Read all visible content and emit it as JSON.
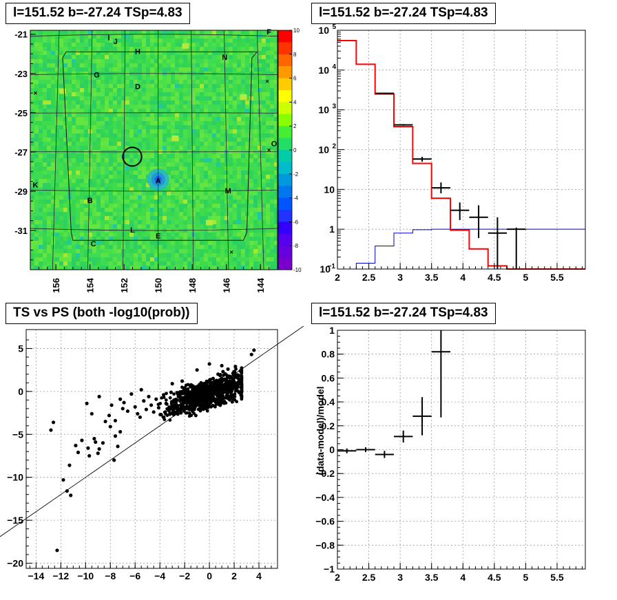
{
  "titles": {
    "skymap": "l=151.52 b=-27.24 TSp=4.83",
    "spectrum": "l=151.52 b=-27.24 TSp=4.83",
    "scatter": "TS vs PS (both -log10(prob))",
    "residual": "l=151.52 b=-27.24 TSp=4.83"
  },
  "colors": {
    "model_line": "#ff0000",
    "background_line": "#0000cc",
    "data": "#000000",
    "map_base": "#44dd44"
  },
  "chart_data": [
    {
      "type": "heatmap",
      "x_ticks": [
        "156",
        "154",
        "152",
        "150",
        "148",
        "146",
        "144"
      ],
      "x_tick_values": [
        156,
        154,
        152,
        150,
        148,
        146,
        144
      ],
      "y_ticks": [
        "-21",
        "-23",
        "-25",
        "-27",
        "-29",
        "-31"
      ],
      "y_tick_values": [
        -21,
        -23,
        -25,
        -27,
        -29,
        -31
      ],
      "xlim": [
        157.5,
        143.0
      ],
      "ylim": [
        -33.0,
        -20.8
      ],
      "colorbar": {
        "ticks": [
          "10",
          "8",
          "6",
          "4",
          "2",
          "0",
          "-2",
          "-4",
          "-6",
          "-8",
          "-10"
        ],
        "range": [
          -10,
          10
        ]
      },
      "labels": [
        {
          "text": "F",
          "l": 143.5,
          "b": -20.9
        },
        {
          "text": "I",
          "l": 152.9,
          "b": -21.2
        },
        {
          "text": "J",
          "l": 152.5,
          "b": -21.4
        },
        {
          "text": "H",
          "l": 151.2,
          "b": -21.9
        },
        {
          "text": "N",
          "l": 146.1,
          "b": -22.2
        },
        {
          "text": "G",
          "l": 153.6,
          "b": -23.1
        },
        {
          "text": "D",
          "l": 151.2,
          "b": -23.7
        },
        {
          "text": "O",
          "l": 143.2,
          "b": -26.6
        },
        {
          "text": "A",
          "l": 150.0,
          "b": -28.5
        },
        {
          "text": "K",
          "l": 157.2,
          "b": -28.7
        },
        {
          "text": "M",
          "l": 145.9,
          "b": -29.0
        },
        {
          "text": "B",
          "l": 154.0,
          "b": -29.5
        },
        {
          "text": "L",
          "l": 151.5,
          "b": -31.0
        },
        {
          "text": "E",
          "l": 150.0,
          "b": -31.3
        },
        {
          "text": "C",
          "l": 153.8,
          "b": -31.7
        }
      ],
      "crosses": [
        {
          "l": 157.2,
          "b": -24.0
        },
        {
          "l": 143.6,
          "b": -23.4
        },
        {
          "l": 143.5,
          "b": -26.9
        },
        {
          "l": 145.7,
          "b": -32.1
        }
      ],
      "source_circle": {
        "l": 151.52,
        "b": -27.24,
        "radius_deg": 0.55
      }
    },
    {
      "type": "line",
      "y_scale": "log",
      "xlim": [
        2,
        5.95
      ],
      "ylim": [
        0.1,
        100000
      ],
      "x_ticks": [
        "2",
        "2.5",
        "3",
        "3.5",
        "4",
        "4.5",
        "5",
        "5.5"
      ],
      "x_tick_values": [
        2,
        2.5,
        3,
        3.5,
        4,
        4.5,
        5,
        5.5
      ],
      "y_ticks": [
        "10",
        "1",
        "10"
      ],
      "y_tick_values": [
        10,
        1,
        0.1
      ],
      "y_tick_exps": [
        "5",
        "4",
        "3",
        "2",
        "",
        "",
        "−1"
      ],
      "y_tick_exp_values": [
        100000,
        10000,
        1000,
        100
      ],
      "model": {
        "edges": [
          2.0,
          2.3,
          2.6,
          2.9,
          3.2,
          3.5,
          3.8,
          4.1,
          4.4,
          4.7,
          5.0,
          5.3,
          5.95
        ],
        "values": [
          55000,
          14000,
          2500,
          380,
          45,
          6,
          0.95,
          0.32,
          0.12,
          0.1,
          0.1,
          0.1
        ]
      },
      "background": {
        "edges": [
          2.0,
          2.3,
          2.6,
          2.9,
          3.2,
          3.5,
          3.8,
          4.1,
          4.4,
          4.7,
          5.0,
          5.3,
          5.95
        ],
        "values": [
          0.1,
          0.14,
          0.38,
          0.8,
          0.97,
          1.0,
          1.0,
          1.0,
          1.0,
          1.0,
          1.0,
          1.0
        ]
      },
      "data_points": [
        {
          "x": 2.75,
          "y": 2600,
          "xerr": 0.15,
          "ylo": 2500,
          "yhi": 2700
        },
        {
          "x": 3.05,
          "y": 420,
          "xerr": 0.15,
          "ylo": 400,
          "yhi": 440
        },
        {
          "x": 3.35,
          "y": 58,
          "xerr": 0.15,
          "ylo": 50,
          "yhi": 66
        },
        {
          "x": 3.65,
          "y": 11,
          "xerr": 0.15,
          "ylo": 8,
          "yhi": 15
        },
        {
          "x": 3.95,
          "y": 3.0,
          "xerr": 0.15,
          "ylo": 1.7,
          "yhi": 4.7
        },
        {
          "x": 4.25,
          "y": 2.0,
          "xerr": 0.15,
          "ylo": 0.6,
          "yhi": 4.0
        },
        {
          "x": 4.55,
          "y": 0.8,
          "xerr": 0.15,
          "ylo": 0.1,
          "yhi": 2.0
        },
        {
          "x": 4.85,
          "y": 1.0,
          "xerr": 0.15,
          "ylo": 0.1,
          "yhi": 1.1
        }
      ]
    },
    {
      "type": "scatter",
      "title": "TS vs PS (both -log10(prob))",
      "xlim": [
        -14.8,
        5.5
      ],
      "ylim": [
        -20.6,
        7.2
      ],
      "x_ticks": [
        "−14",
        "−12",
        "−10",
        "−8",
        "−6",
        "−4",
        "−2",
        "0",
        "2",
        "4"
      ],
      "x_tick_values": [
        -14,
        -12,
        -10,
        -8,
        -6,
        -4,
        -2,
        0,
        2,
        4
      ],
      "y_ticks": [
        "5",
        "0",
        "−5",
        "−10",
        "−15",
        "−20"
      ],
      "y_tick_values": [
        5,
        0,
        -5,
        -10,
        -15,
        -20
      ],
      "reference_line": {
        "slope": 1,
        "intercept": 0
      },
      "points": [
        [
          -12.8,
          -4.5
        ],
        [
          -12.6,
          -3.6
        ],
        [
          -12.3,
          -18.5
        ],
        [
          -11.8,
          -10.3
        ],
        [
          -11.5,
          -11.6
        ],
        [
          -11.2,
          -12.1
        ],
        [
          -11.3,
          -8.6
        ],
        [
          -10.8,
          -6.3
        ],
        [
          -10.3,
          -5.7
        ],
        [
          -10.6,
          -7.1
        ],
        [
          -9.8,
          -6.6
        ],
        [
          -9.7,
          -7.5
        ],
        [
          -9.3,
          -5.5
        ],
        [
          -9.2,
          -5.9
        ],
        [
          -8.9,
          -6.7
        ],
        [
          -9.0,
          -7.2
        ],
        [
          -8.6,
          -6.0
        ],
        [
          -9.9,
          -1.4
        ],
        [
          -9.5,
          -2.6
        ],
        [
          -8.9,
          -0.6
        ],
        [
          -8.4,
          -3.5
        ],
        [
          -8.1,
          -2.8
        ],
        [
          -7.9,
          -1.6
        ],
        [
          -7.6,
          -3.4
        ],
        [
          -7.2,
          -0.9
        ],
        [
          -7.0,
          -2.0
        ],
        [
          -7.6,
          -5.2
        ],
        [
          -7.7,
          -8.0
        ],
        [
          -7.4,
          -6.4
        ],
        [
          -7.2,
          -4.7
        ],
        [
          -8.0,
          -4.1
        ],
        [
          -6.9,
          -1.3
        ],
        [
          -6.6,
          -2.3
        ],
        [
          -6.3,
          -0.3
        ],
        [
          -6.0,
          -1.8
        ],
        [
          -5.8,
          -2.6
        ],
        [
          -5.6,
          -3.0
        ],
        [
          -5.3,
          -1.1
        ],
        [
          -5.1,
          -2.1
        ],
        [
          -4.9,
          -0.6
        ],
        [
          -4.7,
          -1.6
        ],
        [
          -4.5,
          -2.4
        ],
        [
          -4.3,
          -0.9
        ],
        [
          -4.1,
          -1.9
        ],
        [
          -3.9,
          -2.7
        ],
        [
          -3.7,
          -0.4
        ],
        [
          -3.5,
          -1.4
        ],
        [
          -3.3,
          -2.2
        ],
        [
          -3.1,
          -0.1
        ],
        [
          -2.9,
          -1.1
        ],
        [
          -2.7,
          -1.8
        ],
        [
          -2.5,
          -0.6
        ],
        [
          -2.3,
          -2.5
        ],
        [
          -2.1,
          -1.3
        ],
        [
          -1.9,
          0.1
        ],
        [
          -1.7,
          -0.8
        ],
        [
          -1.5,
          -1.7
        ],
        [
          -1.3,
          -0.3
        ],
        [
          -1.1,
          -2.8
        ],
        [
          -0.9,
          0.4
        ],
        [
          -0.7,
          -1.0
        ],
        [
          -0.5,
          0.8
        ],
        [
          -0.3,
          -1.6
        ],
        [
          -0.1,
          1.1
        ],
        [
          0.1,
          -0.5
        ],
        [
          0.3,
          1.5
        ],
        [
          0.5,
          0.3
        ],
        [
          0.7,
          2.0
        ],
        [
          0.9,
          0.9
        ],
        [
          1.1,
          2.3
        ],
        [
          1.3,
          1.3
        ],
        [
          1.5,
          2.6
        ],
        [
          1.7,
          1.6
        ],
        [
          1.9,
          2.1
        ],
        [
          2.1,
          2.9
        ],
        [
          2.3,
          1.9
        ],
        [
          2.5,
          2.4
        ],
        [
          -3.0,
          0.9
        ],
        [
          -2.2,
          1.2
        ],
        [
          -5.5,
          0.2
        ],
        [
          3.4,
          4.3
        ],
        [
          3.6,
          4.8
        ],
        [
          -1.0,
          2.5
        ],
        [
          0.0,
          3.2
        ],
        [
          1.0,
          3.0
        ]
      ]
    },
    {
      "type": "scatter",
      "ylabel": "(data-model)/model",
      "xlim": [
        2,
        5.95
      ],
      "ylim": [
        -1,
        1
      ],
      "x_ticks": [
        "2",
        "2.5",
        "3",
        "3.5",
        "4",
        "4.5",
        "5",
        "5.5"
      ],
      "x_tick_values": [
        2,
        2.5,
        3,
        3.5,
        4,
        4.5,
        5,
        5.5
      ],
      "y_ticks": [
        "1",
        "0.8",
        "0.6",
        "0.4",
        "0.2",
        "0",
        "−0.2",
        "−0.4",
        "−0.6",
        "−0.8",
        "−1"
      ],
      "y_tick_values": [
        1,
        0.8,
        0.6,
        0.4,
        0.2,
        0,
        -0.2,
        -0.4,
        -0.6,
        -0.8,
        -1
      ],
      "points": [
        {
          "x": 2.15,
          "y": -0.01,
          "xerr": 0.15,
          "ylo": -0.03,
          "yhi": 0.01
        },
        {
          "x": 2.45,
          "y": 0.0,
          "xerr": 0.15,
          "ylo": -0.02,
          "yhi": 0.02
        },
        {
          "x": 2.75,
          "y": -0.04,
          "xerr": 0.15,
          "ylo": -0.07,
          "yhi": -0.01
        },
        {
          "x": 3.05,
          "y": 0.11,
          "xerr": 0.15,
          "ylo": 0.06,
          "yhi": 0.16
        },
        {
          "x": 3.35,
          "y": 0.28,
          "xerr": 0.15,
          "ylo": 0.12,
          "yhi": 0.44
        },
        {
          "x": 3.65,
          "y": 0.82,
          "xerr": 0.15,
          "ylo": 0.27,
          "yhi": 1.0
        }
      ]
    }
  ]
}
